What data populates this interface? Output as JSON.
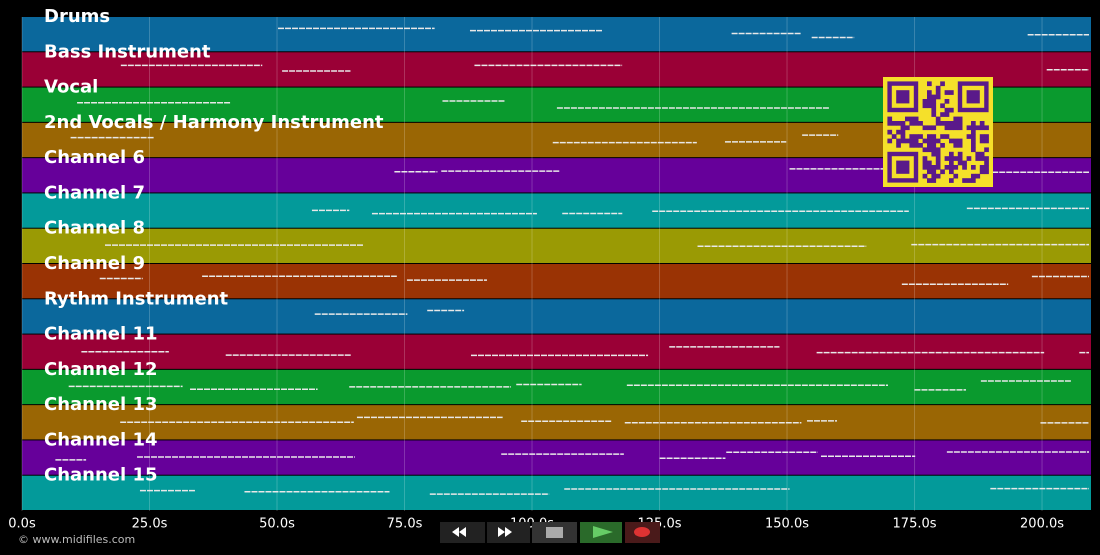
{
  "tracks": [
    {
      "name": "Drums",
      "color": "#0b689c"
    },
    {
      "name": "Bass Instrument",
      "color": "#9a0036"
    },
    {
      "name": "Vocal",
      "color": "#0a9a2e"
    },
    {
      "name": "2nd Vocals / Harmony Instrument",
      "color": "#9a6604"
    },
    {
      "name": "Channel 6",
      "color": "#66009a"
    },
    {
      "name": "Channel 7",
      "color": "#039a9a"
    },
    {
      "name": "Channel 8",
      "color": "#9a9a04"
    },
    {
      "name": "Channel 9",
      "color": "#9a3304"
    },
    {
      "name": "Rythm Instrument",
      "color": "#0b689c"
    },
    {
      "name": "Channel 11",
      "color": "#9a0036"
    },
    {
      "name": "Channel 12",
      "color": "#0a9a2e"
    },
    {
      "name": "Channel 13",
      "color": "#9a6604"
    },
    {
      "name": "Channel 14",
      "color": "#66009a"
    },
    {
      "name": "Channel 15",
      "color": "#039a9a"
    }
  ],
  "axis": {
    "xlim": [
      0,
      209.6
    ],
    "ticks": [
      {
        "value": 0,
        "label": "0.0s"
      },
      {
        "value": 25,
        "label": "25.0s"
      },
      {
        "value": 50,
        "label": "50.0s"
      },
      {
        "value": 75,
        "label": "75.0s"
      },
      {
        "value": 100,
        "label": "100.0s"
      },
      {
        "value": 125,
        "label": "125.0s"
      },
      {
        "value": 150,
        "label": "150.0s"
      },
      {
        "value": 175,
        "label": "175.0s"
      },
      {
        "value": 200,
        "label": "200.0s"
      }
    ]
  },
  "footer": {
    "copyright": "© www.midifiles.com"
  }
}
